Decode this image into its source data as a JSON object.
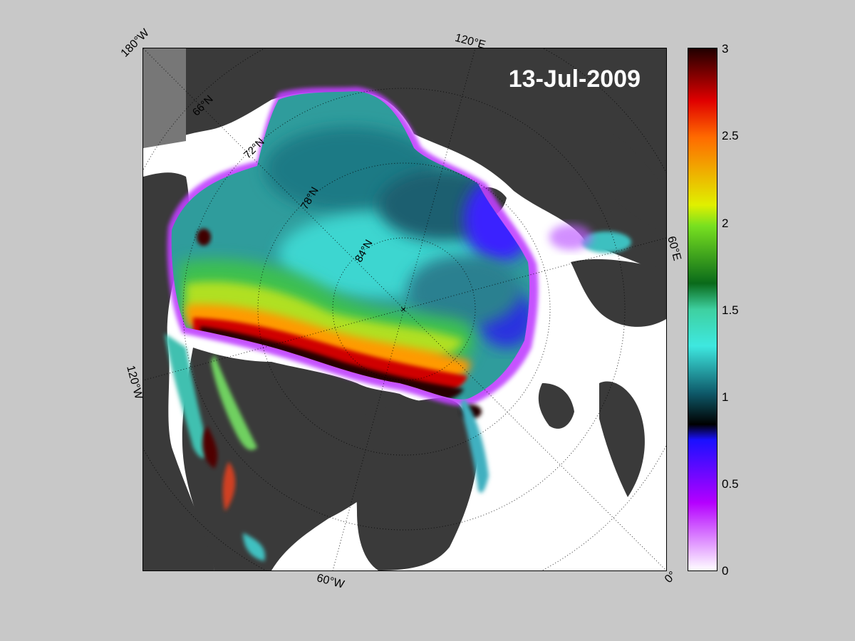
{
  "map": {
    "date": "13-Jul-2009",
    "longitude_labels": [
      "180°W",
      "120°E",
      "60°E",
      "0°",
      "60°W",
      "120°W"
    ],
    "latitude_labels": [
      "66°N",
      "72°N",
      "78°N",
      "84°N"
    ]
  },
  "colorbar": {
    "ticks": [
      "0",
      "0.5",
      "1",
      "1.5",
      "2",
      "2.5",
      "3"
    ],
    "range": [
      0,
      3
    ],
    "colors": {
      "0": "#ffffff",
      "0.4": "#b400ff",
      "0.75": "#1a10ff",
      "0.85": "#000000",
      "1.0": "#0e5a6a",
      "1.3": "#3ee8e0",
      "1.65": "#0a6a1a",
      "2.0": "#78e020",
      "2.1": "#e0f000",
      "2.5": "#ff6a00",
      "2.7": "#e00000",
      "3.0": "#200000"
    }
  },
  "colors": {
    "land": "#3a3a3a",
    "frame_background": "#c8c8c8",
    "ocean_no_ice": "#ffffff"
  }
}
